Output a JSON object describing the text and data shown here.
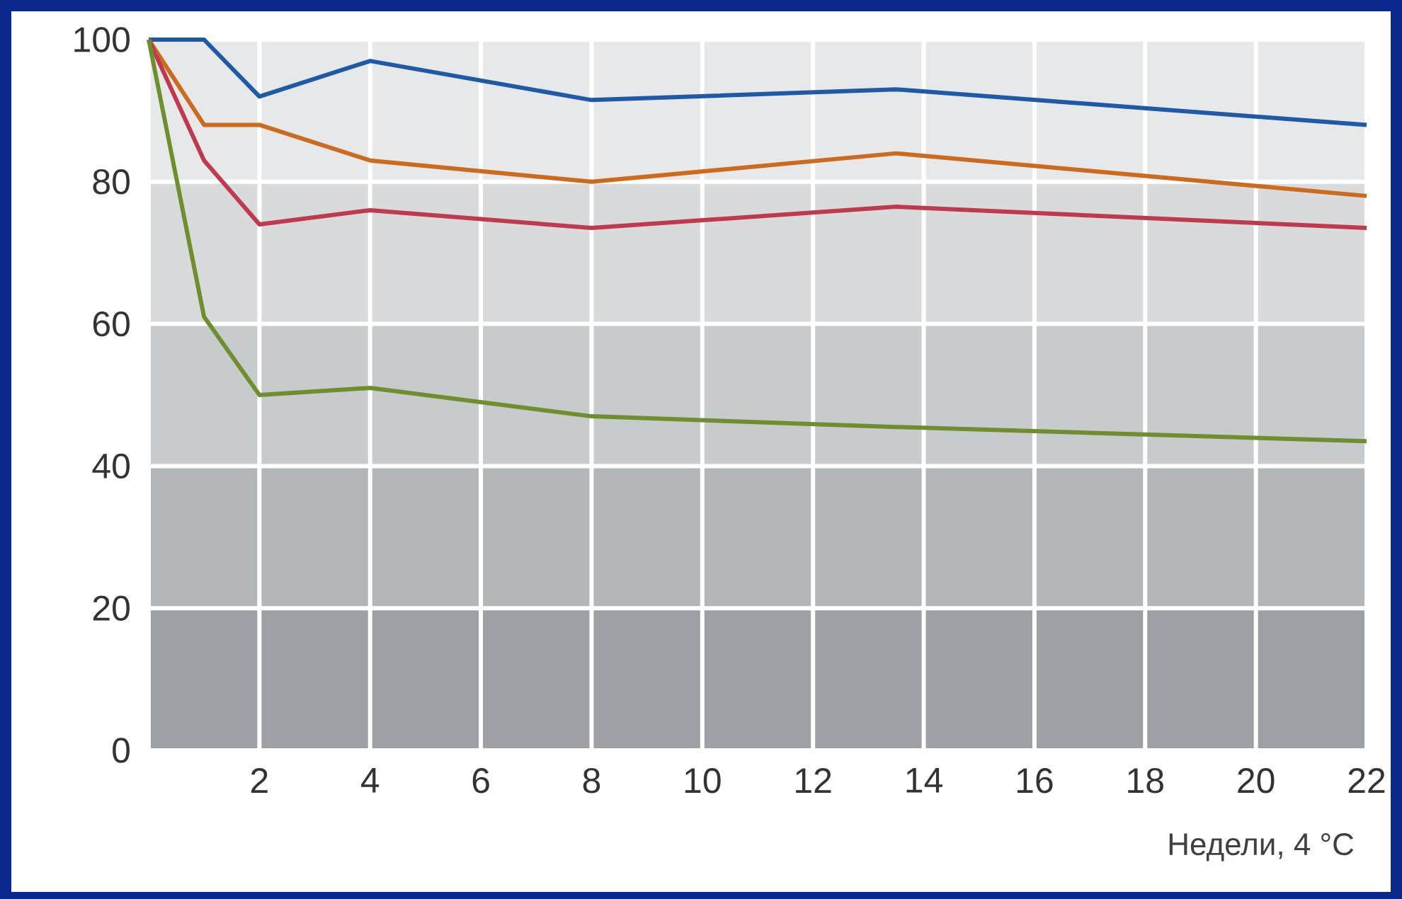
{
  "chart_data": {
    "type": "line",
    "xlabel": "Недели, 4 °C",
    "xlim": [
      0,
      22
    ],
    "ylim": [
      0,
      100
    ],
    "xticks": [
      {
        "value": 0,
        "label": null
      },
      2,
      4,
      6,
      8,
      10,
      12,
      14,
      16,
      18,
      20,
      22
    ],
    "yticks": [
      0,
      20,
      40,
      60,
      80,
      100
    ],
    "grid": true,
    "line_style": "solid",
    "bands": [
      {
        "axis": "y",
        "from": 0,
        "to": 20,
        "color": "#9c9fa3"
      },
      {
        "axis": "y",
        "from": 20,
        "to": 40,
        "color": "#b3b6b9"
      },
      {
        "axis": "y",
        "from": 40,
        "to": 60,
        "color": "#c8cbce"
      },
      {
        "axis": "y",
        "from": 60,
        "to": 80,
        "color": "#d8dadc"
      },
      {
        "axis": "y",
        "from": 80,
        "to": 100,
        "color": "#e7e8e9"
      }
    ],
    "series": [
      {
        "color": "#1f5aa6",
        "x": [
          0,
          1,
          2,
          4,
          8,
          13.5,
          22
        ],
        "values": [
          100,
          100,
          92,
          97,
          91.5,
          93,
          88
        ]
      },
      {
        "color": "#cc6a1e",
        "x": [
          0,
          1,
          2,
          4,
          8,
          13.5,
          22
        ],
        "values": [
          100,
          88,
          88,
          83,
          80,
          84,
          78
        ]
      },
      {
        "color": "#c03a4f",
        "x": [
          0,
          1,
          2,
          4,
          8,
          13.5,
          22
        ],
        "values": [
          100,
          83,
          74,
          76,
          73.5,
          76.5,
          73.5
        ]
      },
      {
        "color": "#6f8f2e",
        "x": [
          0,
          1,
          2,
          4,
          8,
          13.5,
          22
        ],
        "values": [
          100,
          61,
          50,
          51,
          47,
          45.5,
          43.5
        ]
      }
    ]
  }
}
